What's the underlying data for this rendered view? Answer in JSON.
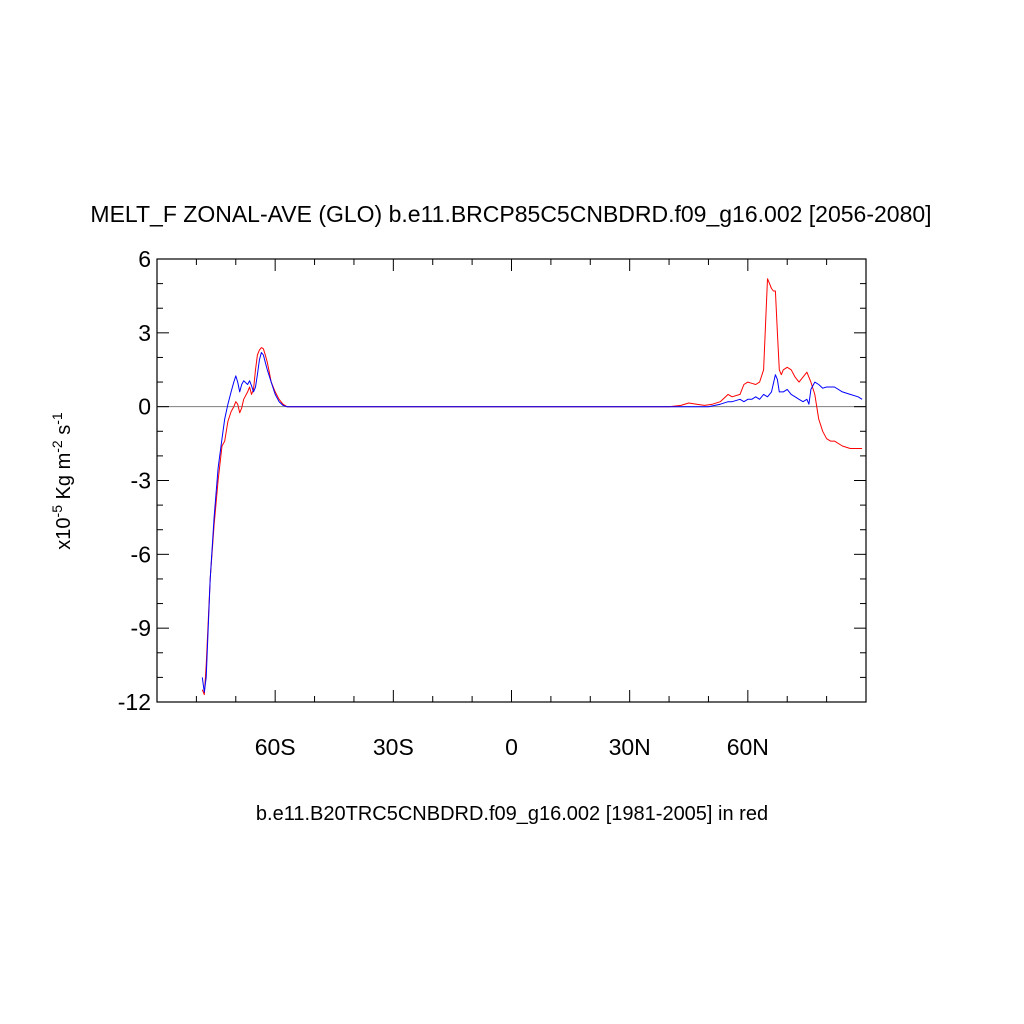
{
  "chart_data": {
    "type": "line",
    "title": "MELT_F ZONAL-AVE (GLO) b.e11.BRCP85C5CNBDRD.f09_g16.002 [2056-2080]",
    "xlabel": "b.e11.B20TRC5CNBDRD.f09_g16.002 [1981-2005] in red",
    "ylabel": {
      "base": "x10",
      "exp1": "-5",
      "mid": " Kg m",
      "exp2": "-2",
      "mid2": " s",
      "exp3": "-1"
    },
    "xlim": [
      -90,
      90
    ],
    "ylim": [
      -12,
      6
    ],
    "x_ticks": [
      {
        "value": -60,
        "label": "60S"
      },
      {
        "value": -30,
        "label": "30S"
      },
      {
        "value": 0,
        "label": "0"
      },
      {
        "value": 30,
        "label": "30N"
      },
      {
        "value": 60,
        "label": "60N"
      }
    ],
    "y_ticks": [
      {
        "value": 6,
        "label": "6"
      },
      {
        "value": 3,
        "label": "3"
      },
      {
        "value": 0,
        "label": "0"
      },
      {
        "value": -3,
        "label": "-3"
      },
      {
        "value": -6,
        "label": "-6"
      },
      {
        "value": -9,
        "label": "-9"
      },
      {
        "value": -12,
        "label": "-12"
      }
    ],
    "reference_line": 0,
    "series": [
      {
        "color": "#0000ff",
        "x": [
          -78.5,
          -78.0,
          -77.5,
          -76.5,
          -75.5,
          -74.5,
          -73.5,
          -72.8,
          -72.0,
          -71.2,
          -70.5,
          -70.0,
          -69.5,
          -69.0,
          -68.5,
          -68.0,
          -67.0,
          -66.5,
          -66.0,
          -65.5,
          -65.0,
          -64.5,
          -64.0,
          -63.5,
          -63.0,
          -62.5,
          -62.0,
          -61.0,
          -60.0,
          -59.0,
          -58.0,
          -57.0,
          -56.0,
          -50.0,
          -30.0,
          0.0,
          30.0,
          40.0,
          45.0,
          50.0,
          53.0,
          55.0,
          56.0,
          58.0,
          59.0,
          60.0,
          61.0,
          62.0,
          63.0,
          64.0,
          65.0,
          66.0,
          67.0,
          67.5,
          68.0,
          69.0,
          70.0,
          71.0,
          72.0,
          73.0,
          74.0,
          75.0,
          75.5,
          76.0,
          77.0,
          78.0,
          79.0,
          80.0,
          82.0,
          84.0,
          86.0,
          88.0,
          89.0
        ],
        "y": [
          -11.0,
          -11.6,
          -11.0,
          -7.0,
          -4.5,
          -2.5,
          -1.3,
          -0.5,
          0.1,
          0.6,
          1.0,
          1.25,
          1.0,
          0.6,
          0.9,
          1.05,
          0.9,
          1.05,
          0.85,
          0.6,
          0.8,
          1.3,
          1.9,
          2.2,
          2.1,
          1.8,
          1.5,
          1.0,
          0.5,
          0.2,
          0.05,
          0.0,
          0.0,
          0.0,
          0.0,
          0.0,
          0.0,
          0.0,
          0.0,
          0.0,
          0.1,
          0.2,
          0.2,
          0.3,
          0.2,
          0.3,
          0.3,
          0.4,
          0.3,
          0.5,
          0.4,
          0.6,
          1.3,
          1.1,
          0.6,
          0.6,
          0.7,
          0.5,
          0.4,
          0.3,
          0.2,
          0.3,
          0.1,
          0.7,
          1.0,
          0.9,
          0.75,
          0.8,
          0.8,
          0.6,
          0.5,
          0.4,
          0.3
        ]
      },
      {
        "color": "#ff0000",
        "x": [
          -78.5,
          -78.0,
          -77.5,
          -76.5,
          -75.5,
          -74.5,
          -73.5,
          -72.8,
          -72.0,
          -71.2,
          -70.5,
          -70.0,
          -69.5,
          -69.0,
          -68.5,
          -68.0,
          -67.0,
          -66.5,
          -66.0,
          -65.5,
          -65.0,
          -64.5,
          -64.0,
          -63.5,
          -63.0,
          -62.5,
          -62.0,
          -61.5,
          -61.0,
          -60.0,
          -59.0,
          -58.0,
          -57.0,
          -56.0,
          -55.0,
          -54.0,
          -50.0,
          -30.0,
          0.0,
          30.0,
          40.0,
          43.0,
          45.0,
          47.0,
          49.0,
          51.0,
          53.0,
          55.0,
          56.0,
          58.0,
          59.0,
          60.0,
          61.0,
          62.0,
          63.0,
          64.0,
          65.0,
          65.5,
          66.0,
          66.5,
          67.0,
          67.5,
          68.0,
          68.5,
          69.0,
          70.0,
          71.0,
          72.0,
          73.0,
          74.0,
          75.0,
          76.0,
          77.0,
          78.0,
          79.0,
          80.0,
          81.0,
          82.0,
          84.0,
          86.0,
          88.0,
          89.0
        ],
        "y": [
          -11.5,
          -11.7,
          -10.5,
          -7.0,
          -4.8,
          -3.0,
          -1.6,
          -1.4,
          -0.6,
          -0.2,
          0.0,
          0.2,
          0.1,
          -0.25,
          -0.05,
          0.3,
          0.6,
          0.8,
          0.5,
          0.7,
          1.5,
          2.1,
          2.3,
          2.4,
          2.35,
          2.1,
          1.8,
          1.4,
          1.0,
          0.6,
          0.3,
          0.1,
          0.0,
          0.0,
          0.0,
          0.0,
          0.0,
          0.0,
          0.0,
          0.0,
          0.0,
          0.05,
          0.15,
          0.1,
          0.05,
          0.1,
          0.2,
          0.5,
          0.4,
          0.5,
          0.9,
          1.0,
          0.95,
          0.9,
          1.0,
          1.5,
          5.2,
          5.0,
          4.8,
          4.7,
          4.7,
          3.0,
          1.5,
          1.3,
          1.5,
          1.6,
          1.5,
          1.2,
          1.0,
          1.2,
          1.4,
          1.0,
          0.5,
          -0.5,
          -1.0,
          -1.3,
          -1.4,
          -1.4,
          -1.6,
          -1.7,
          -1.7,
          -1.7
        ]
      }
    ]
  }
}
